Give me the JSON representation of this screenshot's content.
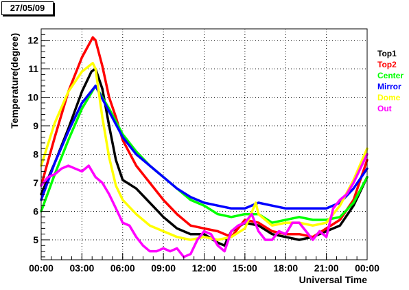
{
  "date_label": "27/05/09",
  "chart_data": {
    "type": "line",
    "title": "",
    "xlabel": "Universal Time",
    "ylabel": "Temperature(degree)",
    "xlim": [
      0,
      24
    ],
    "ylim": [
      4.3,
      12.4
    ],
    "x_ticks": [
      {
        "value": 0,
        "label": "00:00"
      },
      {
        "value": 3,
        "label": "03:00"
      },
      {
        "value": 6,
        "label": "06:00"
      },
      {
        "value": 9,
        "label": "09:00"
      },
      {
        "value": 12,
        "label": "12:00"
      },
      {
        "value": 15,
        "label": "15:00"
      },
      {
        "value": 18,
        "label": "18:00"
      },
      {
        "value": 21,
        "label": "21:00"
      },
      {
        "value": 24,
        "label": "00:00"
      }
    ],
    "y_ticks": [
      {
        "value": 5,
        "label": "5"
      },
      {
        "value": 6,
        "label": "6"
      },
      {
        "value": 7,
        "label": "7"
      },
      {
        "value": 8,
        "label": "8"
      },
      {
        "value": 9,
        "label": "9"
      },
      {
        "value": 10,
        "label": "10"
      },
      {
        "value": 11,
        "label": "11"
      },
      {
        "value": 12,
        "label": "12"
      }
    ],
    "grid": true,
    "legend_position": "right",
    "series": [
      {
        "name": "Top1",
        "color": "#000000",
        "x": [
          0,
          1,
          2,
          3,
          3.7,
          4,
          4.5,
          5,
          5.5,
          6,
          7,
          8,
          9,
          10,
          11,
          12,
          13,
          13.5,
          14,
          15,
          16,
          17,
          18,
          19,
          20,
          21,
          22,
          23,
          24
        ],
        "y": [
          6.6,
          7.7,
          8.9,
          10.2,
          10.9,
          11.0,
          10.3,
          9.0,
          7.8,
          7.1,
          6.8,
          6.3,
          5.8,
          5.4,
          5.2,
          5.2,
          4.9,
          4.8,
          5.3,
          5.6,
          5.5,
          5.2,
          5.1,
          5.0,
          5.1,
          5.3,
          5.5,
          6.2,
          7.2
        ]
      },
      {
        "name": "Top2",
        "color": "#ff0000",
        "x": [
          0,
          1,
          2,
          3,
          3.8,
          4,
          4.5,
          5,
          5.5,
          6,
          7,
          8,
          9,
          10,
          11,
          12,
          13,
          14,
          15,
          16,
          17,
          18,
          19,
          20,
          21,
          22,
          23,
          24
        ],
        "y": [
          6.9,
          8.6,
          10.2,
          11.4,
          12.1,
          12.0,
          11.1,
          10.0,
          9.3,
          8.5,
          7.6,
          7.0,
          6.4,
          5.9,
          5.5,
          5.4,
          5.3,
          5.1,
          5.7,
          5.6,
          5.3,
          5.2,
          5.2,
          5.1,
          5.4,
          5.7,
          6.4,
          7.8
        ]
      },
      {
        "name": "Center",
        "color": "#00ff00",
        "x": [
          0,
          1,
          2,
          3,
          4,
          5,
          6,
          7,
          8,
          9,
          10,
          11,
          12,
          13,
          14,
          15,
          16,
          17,
          18,
          19,
          20,
          21,
          22,
          23,
          24
        ],
        "y": [
          6.0,
          7.3,
          8.5,
          9.6,
          10.4,
          9.6,
          8.7,
          8.1,
          7.6,
          7.2,
          6.8,
          6.4,
          6.2,
          5.9,
          5.8,
          5.9,
          5.9,
          5.6,
          5.7,
          5.8,
          5.7,
          5.7,
          5.8,
          6.3,
          7.2
        ]
      },
      {
        "name": "Mirror",
        "color": "#0000ff",
        "x": [
          0,
          1,
          2,
          3,
          4,
          5,
          6,
          7,
          8,
          9,
          10,
          11,
          12,
          13,
          14,
          15,
          16,
          17,
          18,
          19,
          20,
          21,
          22,
          23,
          24
        ],
        "y": [
          6.4,
          7.7,
          8.8,
          9.8,
          10.4,
          9.5,
          8.6,
          8.0,
          7.6,
          7.2,
          6.8,
          6.5,
          6.3,
          6.2,
          6.1,
          6.1,
          6.3,
          6.2,
          6.1,
          6.1,
          6.1,
          6.1,
          6.3,
          6.8,
          7.5
        ]
      },
      {
        "name": "Dome",
        "color": "#ffff00",
        "x": [
          0,
          1,
          2,
          3,
          3.8,
          4,
          4.5,
          5,
          5.5,
          6,
          7,
          8,
          9,
          10,
          11,
          12,
          13,
          14,
          15,
          15.8,
          16,
          17,
          18,
          19,
          20,
          21,
          22,
          23,
          24
        ],
        "y": [
          7.6,
          9.1,
          10.2,
          10.9,
          11.2,
          11.0,
          9.3,
          7.9,
          6.9,
          6.4,
          5.9,
          5.5,
          5.3,
          5.1,
          5.0,
          5.1,
          5.0,
          5.1,
          5.4,
          6.3,
          5.9,
          5.5,
          5.6,
          5.6,
          5.5,
          5.6,
          6.2,
          7.1,
          8.2
        ]
      },
      {
        "name": "Out",
        "color": "#ff00ff",
        "x": [
          0,
          0.5,
          1,
          1.5,
          2,
          2.5,
          3,
          3.5,
          4,
          4.5,
          5,
          5.5,
          6,
          6.5,
          7,
          7.5,
          8,
          8.5,
          9,
          9.5,
          10,
          10.5,
          11,
          11.5,
          12,
          12.5,
          13,
          13.5,
          14,
          14.5,
          15,
          15.5,
          16,
          16.5,
          17,
          17.5,
          18,
          18.5,
          19,
          19.5,
          20,
          20.5,
          21,
          21.5,
          22,
          22.5,
          23,
          23.5,
          24
        ],
        "y": [
          6.9,
          7.2,
          7.3,
          7.5,
          7.6,
          7.5,
          7.4,
          7.6,
          7.2,
          7.0,
          6.6,
          6.1,
          5.6,
          5.5,
          5.1,
          4.8,
          4.6,
          4.6,
          4.7,
          4.6,
          4.7,
          4.4,
          4.5,
          5.0,
          5.3,
          5.2,
          4.8,
          4.6,
          5.3,
          5.5,
          5.6,
          5.9,
          5.3,
          5.0,
          5.0,
          5.3,
          5.2,
          5.6,
          5.6,
          5.3,
          5.0,
          5.3,
          5.1,
          6.1,
          6.4,
          6.6,
          7.0,
          7.5,
          8.0
        ]
      }
    ]
  }
}
